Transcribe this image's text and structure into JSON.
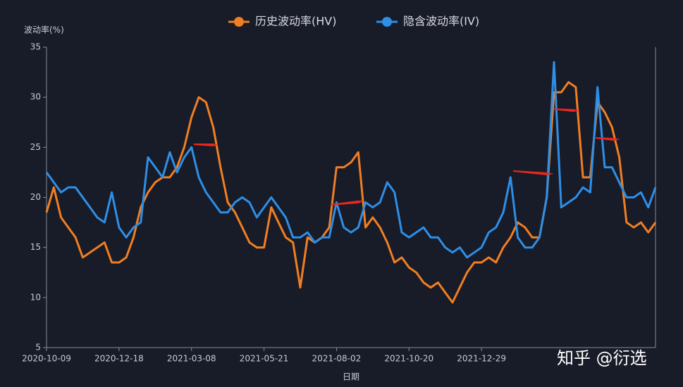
{
  "chart_data": {
    "type": "line",
    "y_label": "波动率(%)",
    "x_label": "日期",
    "watermark": "知乎 @衍选",
    "categories": [
      "2020-10-09",
      null,
      null,
      null,
      null,
      null,
      null,
      null,
      null,
      null,
      "2020-12-18",
      null,
      null,
      null,
      null,
      null,
      null,
      null,
      null,
      null,
      "2021-03-08",
      null,
      null,
      null,
      null,
      null,
      null,
      null,
      null,
      null,
      "2021-05-21",
      null,
      null,
      null,
      null,
      null,
      null,
      null,
      null,
      null,
      "2021-08-02",
      null,
      null,
      null,
      null,
      null,
      null,
      null,
      null,
      null,
      "2021-10-20",
      null,
      null,
      null,
      null,
      null,
      null,
      null,
      null,
      null,
      "2021-12-29",
      null,
      null,
      null,
      null,
      null,
      null,
      null,
      null,
      null,
      null,
      null,
      null,
      null,
      null,
      null,
      null,
      null,
      null,
      null,
      null,
      null,
      null,
      null,
      null
    ],
    "series": [
      {
        "name": "历史波动率(HV)",
        "color": "#f07f22",
        "values": [
          18.5,
          21,
          18,
          17,
          16,
          14,
          14.5,
          15,
          15.5,
          13.5,
          13.5,
          14,
          16,
          19,
          20.5,
          21.5,
          22,
          22,
          23,
          25,
          28,
          30,
          29.5,
          27,
          23,
          19.5,
          18.5,
          17,
          15.5,
          15,
          15,
          19,
          17.5,
          16,
          15.5,
          11,
          16,
          15.5,
          16,
          17,
          23,
          23,
          23.5,
          24.5,
          17,
          18,
          17,
          15.5,
          13.5,
          14,
          13,
          12.5,
          11.5,
          11,
          11.5,
          10.5,
          9.5,
          11,
          12.5,
          13.5,
          13.5,
          14,
          13.5,
          15,
          16,
          17.5,
          17,
          16,
          16,
          20,
          30.5,
          30.5,
          31.5,
          31,
          22,
          22,
          29.5,
          28.5,
          27,
          24,
          17.5,
          17,
          17.5,
          16.5,
          17.5
        ]
      },
      {
        "name": "隐含波动率(IV)",
        "color": "#2e8fe6",
        "values": [
          22.5,
          21.5,
          20.5,
          21,
          21,
          20,
          19,
          18,
          17.5,
          20.5,
          17,
          16,
          17,
          17.5,
          24,
          23,
          22,
          24.5,
          22.5,
          24,
          25,
          22,
          20.5,
          19.5,
          18.5,
          18.5,
          19.5,
          20,
          19.5,
          18,
          19,
          20,
          19,
          18,
          16,
          16,
          16.5,
          15.5,
          16,
          16,
          19.5,
          17,
          16.5,
          17,
          19.5,
          19,
          19.5,
          21.5,
          20.5,
          16.5,
          16,
          16.5,
          17,
          16,
          16,
          15,
          14.5,
          15,
          14,
          14.5,
          15,
          16.5,
          17,
          18.5,
          22,
          16,
          15,
          15,
          16,
          20,
          33.5,
          19,
          19.5,
          20,
          21,
          20.5,
          31,
          23,
          23,
          21.5,
          20,
          20,
          20.5,
          19,
          21
        ]
      }
    ],
    "ylim": [
      5,
      35
    ],
    "yticks": [
      5,
      10,
      15,
      20,
      25,
      30,
      35
    ]
  }
}
